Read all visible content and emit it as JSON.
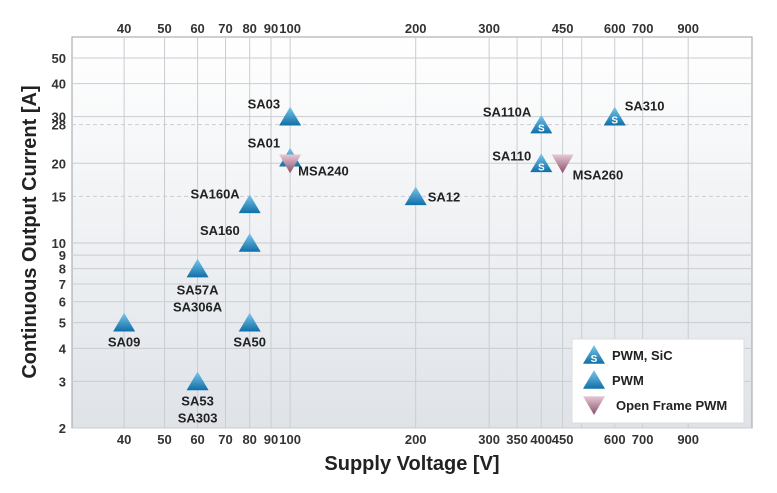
{
  "chart_data": {
    "type": "scatter",
    "xlabel": "Supply Voltage [V]",
    "ylabel": "Continuous Output Current [A]",
    "x_scale": "log",
    "y_scale": "log",
    "xlim": [
      30,
      1280
    ],
    "ylim": [
      2,
      60
    ],
    "x_ticks": [
      40,
      50,
      60,
      70,
      80,
      90,
      100,
      200,
      300,
      350,
      400,
      450,
      500,
      600,
      700,
      900
    ],
    "x_ticks_top": [
      40,
      50,
      60,
      70,
      80,
      90,
      100,
      200,
      300,
      450,
      600,
      700,
      900
    ],
    "x_ticks_bottom": [
      40,
      50,
      60,
      70,
      80,
      90,
      100,
      200,
      300,
      350,
      400,
      450,
      600,
      700,
      900
    ],
    "y_ticks": [
      2,
      3,
      4,
      5,
      6,
      7,
      8,
      9,
      10,
      15,
      20,
      28,
      30,
      40,
      50
    ],
    "grid": true,
    "legend_position": "bottom-right",
    "series": [
      {
        "name": "PWM, SiC",
        "marker": "triangle-up-s",
        "color": "#1f8fc4",
        "points": [
          {
            "label": "SA110A",
            "x": 400,
            "y": 28
          },
          {
            "label": "SA310",
            "x": 600,
            "y": 30
          },
          {
            "label": "SA110",
            "x": 400,
            "y": 20
          }
        ]
      },
      {
        "name": "PWM",
        "marker": "triangle-up",
        "color": "#1f8fc4",
        "points": [
          {
            "label": "SA03",
            "x": 100,
            "y": 30
          },
          {
            "label": "SA01",
            "x": 100,
            "y": 21
          },
          {
            "label": "SA160A",
            "x": 80,
            "y": 14
          },
          {
            "label": "SA160",
            "x": 80,
            "y": 10
          },
          {
            "label": "SA57A SA306A",
            "x": 60,
            "y": 8
          },
          {
            "label": "SA09",
            "x": 40,
            "y": 5
          },
          {
            "label": "SA50",
            "x": 80,
            "y": 5
          },
          {
            "label": "SA53 SA303",
            "x": 60,
            "y": 3
          },
          {
            "label": "SA12",
            "x": 200,
            "y": 15
          }
        ]
      },
      {
        "name": "Open Frame PWM",
        "marker": "triangle-down",
        "color": "#a8708a",
        "points": [
          {
            "label": "MSA240",
            "x": 100,
            "y": 20
          },
          {
            "label": "MSA260",
            "x": 450,
            "y": 20
          }
        ]
      }
    ]
  }
}
